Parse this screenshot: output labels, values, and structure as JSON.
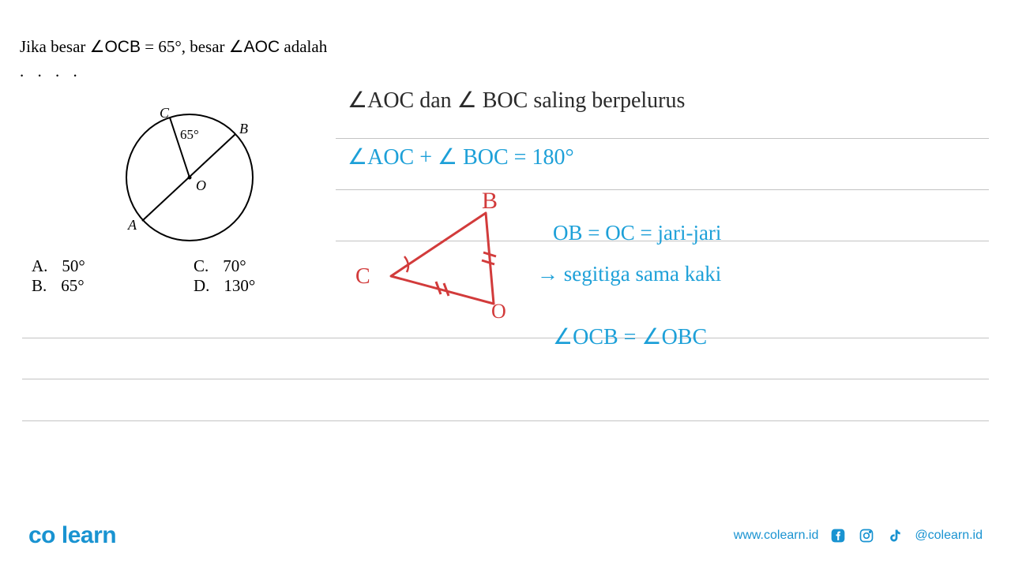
{
  "question": {
    "text_prefix": "Jika besar ",
    "angle1": "∠OCB",
    "eq": " = 65°, besar ",
    "angle2": "∠AOC",
    "suffix": " adalah",
    "dots": ". . . ."
  },
  "diagram": {
    "labels": {
      "A": "A",
      "B": "B",
      "C": "C",
      "O": "O"
    },
    "angle": "65°",
    "circle_stroke": "#000000",
    "line_stroke": "#000000"
  },
  "options": {
    "A": {
      "letter": "A.",
      "val": "50°"
    },
    "B": {
      "letter": "B.",
      "val": "65°"
    },
    "C": {
      "letter": "C.",
      "val": "70°"
    },
    "D": {
      "letter": "D.",
      "val": "130°"
    }
  },
  "work": {
    "line1": "∠AOC dan ∠ BOC saling berpelurus",
    "line2": "∠AOC + ∠ BOC = 180°",
    "sketch_labels": {
      "B": "B",
      "C": "C",
      "O": "O"
    },
    "note1": "OB = OC = jari-jari",
    "note2": "→ segitiga sama kaki",
    "line3": "∠OCB = ∠OBC"
  },
  "footer": {
    "logo_part1": "co",
    "logo_part2": "learn",
    "url": "www.colearn.id",
    "handle": "@colearn.id"
  },
  "colors": {
    "brand_blue": "#1993d1",
    "hand_blue": "#1da0d8",
    "hand_black": "#2a2a2a",
    "sketch_red": "#d23b3b",
    "rule": "#c3c3c3"
  },
  "ruled_lines_y": [
    175,
    240,
    305,
    428,
    480,
    533
  ],
  "ruled_full_from_index": 3
}
